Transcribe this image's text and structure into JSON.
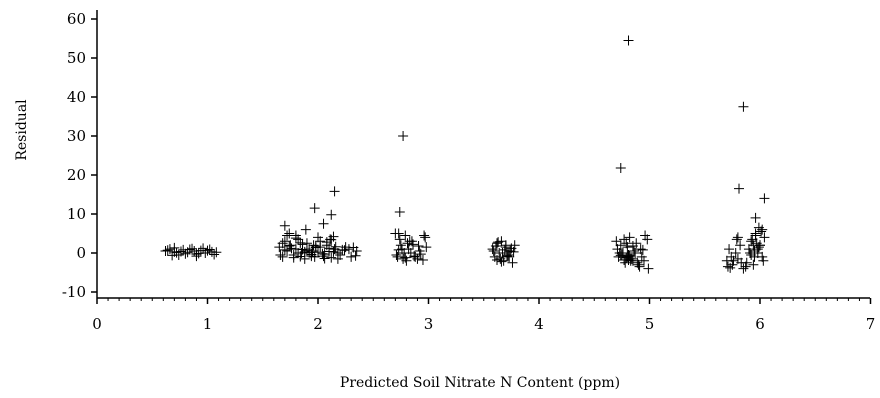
{
  "chart_data": {
    "type": "scatter",
    "title": "",
    "xlabel": "Predicted Soil Nitrate N Content (ppm)",
    "ylabel": "Residual",
    "xlim": [
      0,
      7
    ],
    "ylim": [
      -12,
      62
    ],
    "x_ticks": [
      0,
      1,
      2,
      3,
      4,
      5,
      6,
      7
    ],
    "y_ticks": [
      -10,
      0,
      10,
      20,
      30,
      40,
      50,
      60
    ],
    "x_tick_labels": [
      "0",
      "1",
      "2",
      "3",
      "4",
      "5",
      "6",
      "7"
    ],
    "y_tick_labels": [
      "-10",
      "0",
      "10",
      "20",
      "30",
      "40",
      "50",
      "60"
    ],
    "marker": "plus",
    "grid": false,
    "legend": "none",
    "color": "#000000",
    "series": [
      {
        "x": [
          0.62,
          0.66,
          0.7,
          0.74,
          0.78,
          0.82,
          0.86,
          0.9,
          0.94,
          0.98,
          1.02,
          1.06,
          0.64,
          0.72,
          0.8,
          0.88,
          0.96,
          1.04,
          0.68,
          0.76,
          0.84,
          0.92,
          1.0,
          1.08,
          0.7,
          0.9,
          1.65,
          1.68,
          1.7,
          1.72,
          1.75,
          1.78,
          1.8,
          1.82,
          1.85,
          1.88,
          1.9,
          1.92,
          1.95,
          1.97,
          2.0,
          2.02,
          2.05,
          2.08,
          2.1,
          2.12,
          2.15,
          2.18,
          2.2,
          2.25,
          2.3,
          2.35,
          1.66,
          1.7,
          1.74,
          1.78,
          1.82,
          1.86,
          1.9,
          1.94,
          1.98,
          2.02,
          2.06,
          2.1,
          2.14,
          2.18,
          2.22,
          2.28,
          2.34,
          1.68,
          1.76,
          1.84,
          1.92,
          2.0,
          2.08,
          2.16,
          2.24,
          2.32,
          1.72,
          1.8,
          1.88,
          1.96,
          2.04,
          2.12,
          1.74,
          1.86,
          1.98,
          2.06,
          2.14,
          1.84,
          1.94,
          1.7,
          1.97,
          1.8,
          1.89,
          2.05,
          2.12,
          2.15,
          2.11,
          2.7,
          2.72,
          2.75,
          2.78,
          2.8,
          2.82,
          2.85,
          2.88,
          2.92,
          2.95,
          2.98,
          2.71,
          2.74,
          2.77,
          2.81,
          2.84,
          2.87,
          2.91,
          2.96,
          2.73,
          2.79,
          2.86,
          2.93,
          2.76,
          2.83,
          2.9,
          2.74,
          2.73,
          2.79,
          2.97,
          2.77,
          3.58,
          3.6,
          3.62,
          3.64,
          3.66,
          3.68,
          3.7,
          3.72,
          3.74,
          3.76,
          3.78,
          3.61,
          3.65,
          3.69,
          3.73,
          3.77,
          3.63,
          3.67,
          3.71,
          3.75,
          3.62,
          3.7,
          3.59,
          3.66,
          4.7,
          4.72,
          4.74,
          4.76,
          4.78,
          4.8,
          4.82,
          4.84,
          4.86,
          4.88,
          4.9,
          4.92,
          4.95,
          4.98,
          4.71,
          4.75,
          4.79,
          4.83,
          4.87,
          4.91,
          4.96,
          4.73,
          4.77,
          4.81,
          4.85,
          4.89,
          4.94,
          4.99,
          4.8,
          4.81,
          4.83,
          4.82,
          4.79,
          4.85,
          4.74,
          4.77,
          4.93,
          4.81,
          4.74,
          5.7,
          5.72,
          5.75,
          5.78,
          5.8,
          5.82,
          5.85,
          5.88,
          5.9,
          5.92,
          5.94,
          5.96,
          5.98,
          6.0,
          6.02,
          6.04,
          5.71,
          5.74,
          5.79,
          5.83,
          5.87,
          5.91,
          5.95,
          5.99,
          6.03,
          5.93,
          5.96,
          5.97,
          6.01,
          5.98,
          5.95,
          6.02,
          5.94,
          5.76,
          5.73,
          5.99,
          6.0,
          5.92,
          5.8,
          5.96,
          6.04,
          5.81,
          5.85
        ],
        "y": [
          0.5,
          1.0,
          0.3,
          -0.5,
          0.8,
          0.2,
          1.1,
          -0.3,
          0.6,
          0.0,
          0.9,
          -0.4,
          0.7,
          0.1,
          -0.2,
          0.5,
          1.2,
          0.3,
          -0.6,
          0.4,
          0.9,
          -0.1,
          0.6,
          0.2,
          1.3,
          -0.8,
          1.5,
          -1.0,
          3.0,
          0.5,
          2.0,
          -0.5,
          1.0,
          3.5,
          0.0,
          -1.5,
          2.5,
          1.0,
          0.5,
          -1.0,
          0.2,
          1.5,
          -0.8,
          2.0,
          0.4,
          -1.2,
          1.0,
          0.0,
          -0.5,
          1.5,
          -1.0,
          0.5,
          -0.5,
          0.8,
          1.8,
          -1.2,
          0.0,
          2.2,
          0.6,
          -0.8,
          1.4,
          3.0,
          -0.3,
          1.2,
          0.3,
          -1.5,
          0.8,
          1.0,
          -0.7,
          2.5,
          1.2,
          -0.9,
          0.1,
          4.0,
          2.8,
          1.6,
          0.7,
          1.4,
          4.5,
          3.8,
          0.3,
          2.0,
          -0.2,
          3.4,
          5.0,
          0.9,
          1.8,
          -1.4,
          4.2,
          2.6,
          -0.4,
          7.0,
          11.5,
          4.5,
          6.0,
          7.5,
          9.8,
          15.8,
          3.5,
          5.0,
          -1.0,
          2.0,
          0.0,
          -2.0,
          1.0,
          3.0,
          -1.0,
          0.5,
          -1.8,
          1.5,
          -0.5,
          3.5,
          -1.5,
          2.5,
          0.0,
          -0.8,
          1.8,
          4.5,
          0.8,
          -1.2,
          2.2,
          -0.3,
          1.0,
          3.0,
          -1.5,
          10.5,
          5.0,
          4.5,
          4.0,
          30.0,
          1.0,
          -1.0,
          2.5,
          0.0,
          3.0,
          -2.0,
          1.5,
          -0.5,
          0.5,
          -2.5,
          2.0,
          1.8,
          -1.5,
          0.8,
          -1.0,
          0.3,
          2.8,
          0.0,
          -0.8,
          1.2,
          -1.8,
          2.0,
          0.5,
          -2.2,
          3.0,
          -1.0,
          2.0,
          0.0,
          -2.5,
          1.5,
          4.0,
          -1.5,
          0.5,
          2.5,
          -3.0,
          1.0,
          -2.0,
          3.5,
          1.0,
          -0.5,
          2.5,
          -2.0,
          0.0,
          -3.5,
          4.5,
          0.0,
          3.5,
          -1.8,
          1.8,
          -2.5,
          0.8,
          -4.0,
          -1.0,
          -0.5,
          -1.5,
          -0.8,
          -1.2,
          -2.0,
          -0.6,
          -1.8,
          -1.0,
          54.5,
          21.8,
          -2.0,
          1.0,
          -3.0,
          0.0,
          -1.5,
          2.0,
          -4.0,
          -2.5,
          1.0,
          3.0,
          -3.0,
          5.0,
          0.0,
          2.0,
          -1.0,
          4.0,
          -3.5,
          -1.0,
          3.5,
          -2.5,
          -3.5,
          0.0,
          -1.0,
          1.5,
          -2.0,
          3.5,
          4.5,
          2.5,
          5.5,
          1.0,
          0.5,
          6.0,
          2.0,
          -2.0,
          -3.8,
          6.5,
          2.0,
          -0.5,
          4.0,
          9.0,
          14.0,
          16.5,
          37.5
        ]
      }
    ]
  }
}
